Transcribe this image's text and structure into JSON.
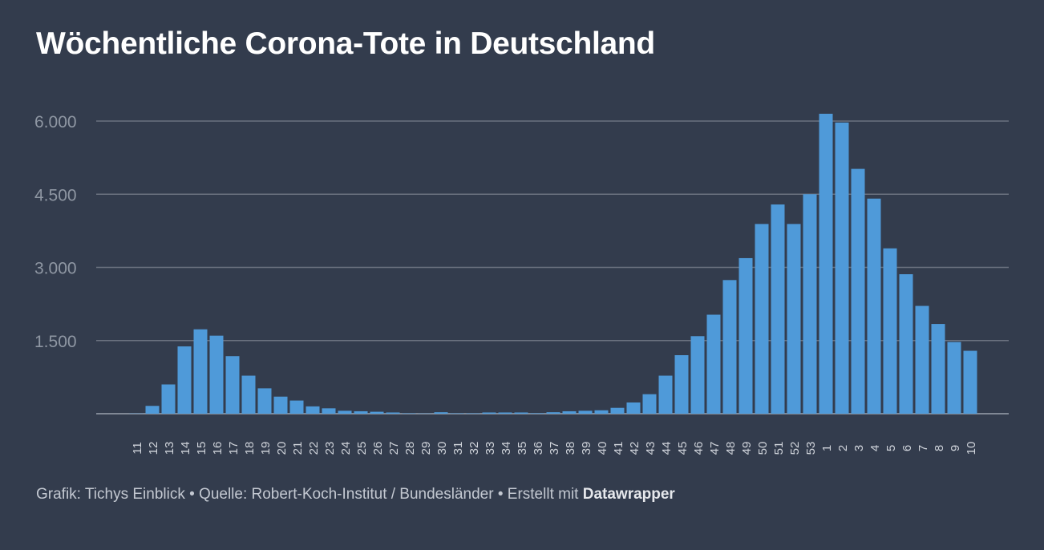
{
  "chart_data": {
    "type": "bar",
    "title": "Wöchentliche Corona-Tote in Deutschland",
    "xlabel": "",
    "ylabel": "",
    "ylim": [
      0,
      6200
    ],
    "yticks": [
      1500,
      3000,
      4500,
      6000
    ],
    "ytick_labels": [
      "1.500",
      "3.000",
      "4.500",
      "6.000"
    ],
    "grid": true,
    "bar_color": "#4f9ad9",
    "categories": [
      "11",
      "12",
      "13",
      "14",
      "15",
      "16",
      "17",
      "18",
      "19",
      "20",
      "21",
      "22",
      "23",
      "24",
      "25",
      "26",
      "27",
      "28",
      "29",
      "30",
      "31",
      "32",
      "33",
      "34",
      "35",
      "36",
      "37",
      "38",
      "39",
      "40",
      "41",
      "42",
      "43",
      "44",
      "45",
      "46",
      "47",
      "48",
      "49",
      "50",
      "51",
      "52",
      "53",
      "1",
      "2",
      "3",
      "4",
      "5",
      "6",
      "7",
      "8",
      "9",
      "10"
    ],
    "values": [
      5,
      160,
      600,
      1380,
      1730,
      1600,
      1180,
      780,
      520,
      350,
      270,
      150,
      110,
      60,
      50,
      40,
      25,
      8,
      5,
      30,
      8,
      8,
      25,
      25,
      25,
      10,
      30,
      50,
      60,
      70,
      120,
      230,
      400,
      780,
      1200,
      1590,
      2030,
      2740,
      3190,
      3890,
      4290,
      3890,
      4500,
      6150,
      5970,
      5020,
      4410,
      3390,
      2860,
      2210,
      1840,
      1470,
      1290
    ]
  },
  "footer": {
    "text": "Grafik: Tichys Einblick • Quelle: Robert-Koch-Institut / Bundesländer • Erstellt mit",
    "brand": "Datawrapper"
  },
  "colors": {
    "background": "#333c4d",
    "grid": "#6b7280",
    "axis_text": "#8f97a3",
    "bar": "#4f9ad9"
  }
}
